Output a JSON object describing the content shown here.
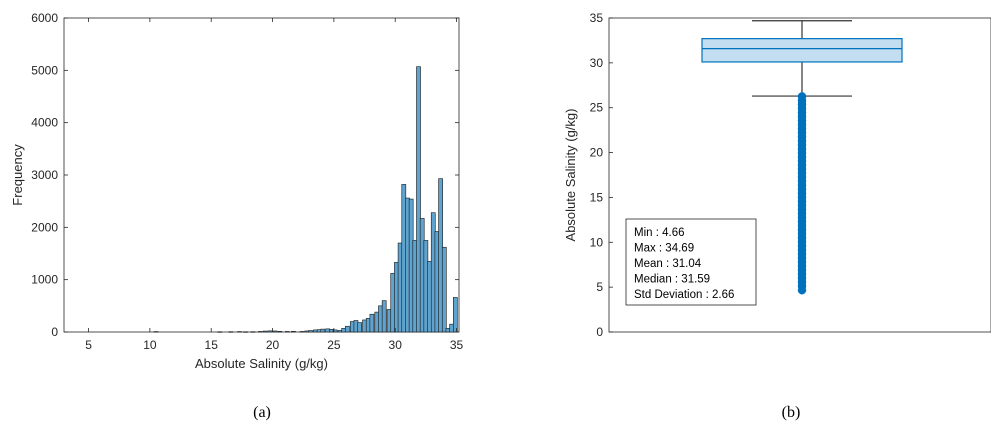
{
  "chart_data": [
    {
      "type": "bar",
      "subtype": "histogram",
      "caption": "(a)",
      "title": "",
      "xlabel": "Absolute Salinity (g/kg)",
      "ylabel": "Frequency",
      "xlim": [
        3,
        35.2
      ],
      "ylim": [
        0,
        6000
      ],
      "xticks": [
        5,
        10,
        15,
        20,
        25,
        30,
        35
      ],
      "yticks": [
        0,
        1000,
        2000,
        3000,
        4000,
        5000,
        6000
      ],
      "bin_width": 0.33,
      "bar_color": "#5fa3cf",
      "edge_color": "#1a1a1a",
      "bins": [
        {
          "x": 10.5,
          "v": 8
        },
        {
          "x": 15.7,
          "v": 5
        },
        {
          "x": 16.6,
          "v": 6
        },
        {
          "x": 17.3,
          "v": 8
        },
        {
          "x": 17.8,
          "v": 5
        },
        {
          "x": 18.4,
          "v": 6
        },
        {
          "x": 19.0,
          "v": 10
        },
        {
          "x": 19.4,
          "v": 18
        },
        {
          "x": 19.8,
          "v": 22
        },
        {
          "x": 20.2,
          "v": 20
        },
        {
          "x": 20.6,
          "v": 12
        },
        {
          "x": 21.2,
          "v": 10
        },
        {
          "x": 21.7,
          "v": 12
        },
        {
          "x": 22.4,
          "v": 10
        },
        {
          "x": 22.8,
          "v": 20
        },
        {
          "x": 23.1,
          "v": 28
        },
        {
          "x": 23.5,
          "v": 40
        },
        {
          "x": 23.8,
          "v": 45
        },
        {
          "x": 24.1,
          "v": 55
        },
        {
          "x": 24.5,
          "v": 60
        },
        {
          "x": 24.8,
          "v": 50
        },
        {
          "x": 25.1,
          "v": 40
        },
        {
          "x": 25.5,
          "v": 30
        },
        {
          "x": 25.8,
          "v": 70
        },
        {
          "x": 26.1,
          "v": 110
        },
        {
          "x": 26.5,
          "v": 200
        },
        {
          "x": 26.8,
          "v": 220
        },
        {
          "x": 27.1,
          "v": 180
        },
        {
          "x": 27.5,
          "v": 230
        },
        {
          "x": 27.8,
          "v": 260
        },
        {
          "x": 28.1,
          "v": 340
        },
        {
          "x": 28.5,
          "v": 380
        },
        {
          "x": 28.8,
          "v": 500
        },
        {
          "x": 29.1,
          "v": 600
        },
        {
          "x": 29.5,
          "v": 430
        },
        {
          "x": 29.8,
          "v": 1120
        },
        {
          "x": 30.1,
          "v": 1330
        },
        {
          "x": 30.4,
          "v": 1700
        },
        {
          "x": 30.7,
          "v": 2820
        },
        {
          "x": 31.0,
          "v": 2560
        },
        {
          "x": 31.3,
          "v": 2540
        },
        {
          "x": 31.6,
          "v": 1750
        },
        {
          "x": 31.9,
          "v": 5070
        },
        {
          "x": 32.2,
          "v": 2170
        },
        {
          "x": 32.5,
          "v": 1750
        },
        {
          "x": 32.8,
          "v": 1350
        },
        {
          "x": 33.1,
          "v": 2280
        },
        {
          "x": 33.4,
          "v": 1920
        },
        {
          "x": 33.7,
          "v": 2930
        },
        {
          "x": 34.0,
          "v": 1620
        },
        {
          "x": 34.3,
          "v": 70
        },
        {
          "x": 34.6,
          "v": 150
        },
        {
          "x": 34.9,
          "v": 660
        }
      ]
    },
    {
      "type": "box",
      "caption": "(b)",
      "title": "",
      "xlabel": "",
      "ylabel": "Absolute Salinity (g/kg)",
      "ylim": [
        0,
        35
      ],
      "yticks": [
        0,
        5,
        10,
        15,
        20,
        25,
        30,
        35
      ],
      "box": {
        "q1": 30.1,
        "median": 31.59,
        "q3": 32.7,
        "whisker_low": 26.3,
        "whisker_high": 34.69
      },
      "outliers_range": [
        4.66,
        26.3
      ],
      "fill_color": "#c4def1",
      "line_color": "#0072bd",
      "whisker_color": "#333333",
      "stats": [
        {
          "label": "Min",
          "value": "4.66"
        },
        {
          "label": "Max",
          "value": "34.69"
        },
        {
          "label": "Mean",
          "value": "31.04"
        },
        {
          "label": "Median",
          "value": "31.59"
        },
        {
          "label": "Std Deviation",
          "value": "2.66"
        }
      ]
    }
  ]
}
